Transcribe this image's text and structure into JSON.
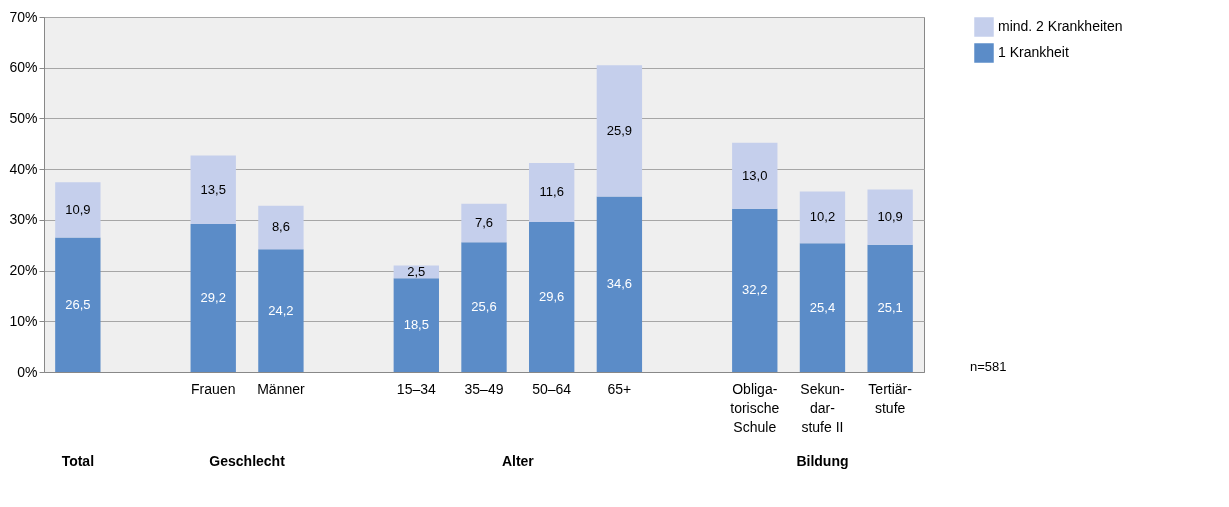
{
  "chart_data": {
    "type": "bar",
    "stacked": true,
    "categories": [
      null,
      null,
      "Frauen",
      "Männer",
      null,
      "15–34",
      "35–49",
      "50–64",
      "65+",
      null,
      "Obliga-\ntorische\nSchule",
      "Sekun-\ndar-\nstufe II",
      "Tertiär-\nstufe"
    ],
    "series": [
      {
        "name": "1 Krankheit",
        "color": "#5b8cc8",
        "values": [
          26.5,
          null,
          29.2,
          24.2,
          null,
          18.5,
          25.6,
          29.6,
          34.6,
          null,
          32.2,
          25.4,
          25.1
        ],
        "value_labels": [
          "26,5",
          null,
          "29,2",
          "24,2",
          null,
          "18,5",
          "25,6",
          "29,6",
          "34,6",
          null,
          "32,2",
          "25,4",
          "25,1"
        ]
      },
      {
        "name": "mind. 2 Krankheiten",
        "color": "#c5cfec",
        "values": [
          10.9,
          null,
          13.5,
          8.6,
          null,
          2.5,
          7.6,
          11.6,
          25.9,
          null,
          13.0,
          10.2,
          10.9
        ],
        "value_labels": [
          "10,9",
          null,
          "13,5",
          "8,6",
          null,
          "2,5",
          "7,6",
          "11,6",
          "25,9",
          null,
          "13,0",
          "10,2",
          "10,9"
        ]
      }
    ],
    "ylim": [
      0,
      70
    ],
    "yticks": [
      {
        "value": 0,
        "label": "0%"
      },
      {
        "value": 10,
        "label": "10%"
      },
      {
        "value": 20,
        "label": "20%"
      },
      {
        "value": 30,
        "label": "30%"
      },
      {
        "value": 40,
        "label": "40%"
      },
      {
        "value": 50,
        "label": "50%"
      },
      {
        "value": 60,
        "label": "60%"
      },
      {
        "value": 70,
        "label": "70%"
      }
    ],
    "grid": "y",
    "legend": "right",
    "annotations": [
      "Total",
      "Geschlecht",
      "Alter",
      "Bildung",
      "n=581"
    ]
  }
}
